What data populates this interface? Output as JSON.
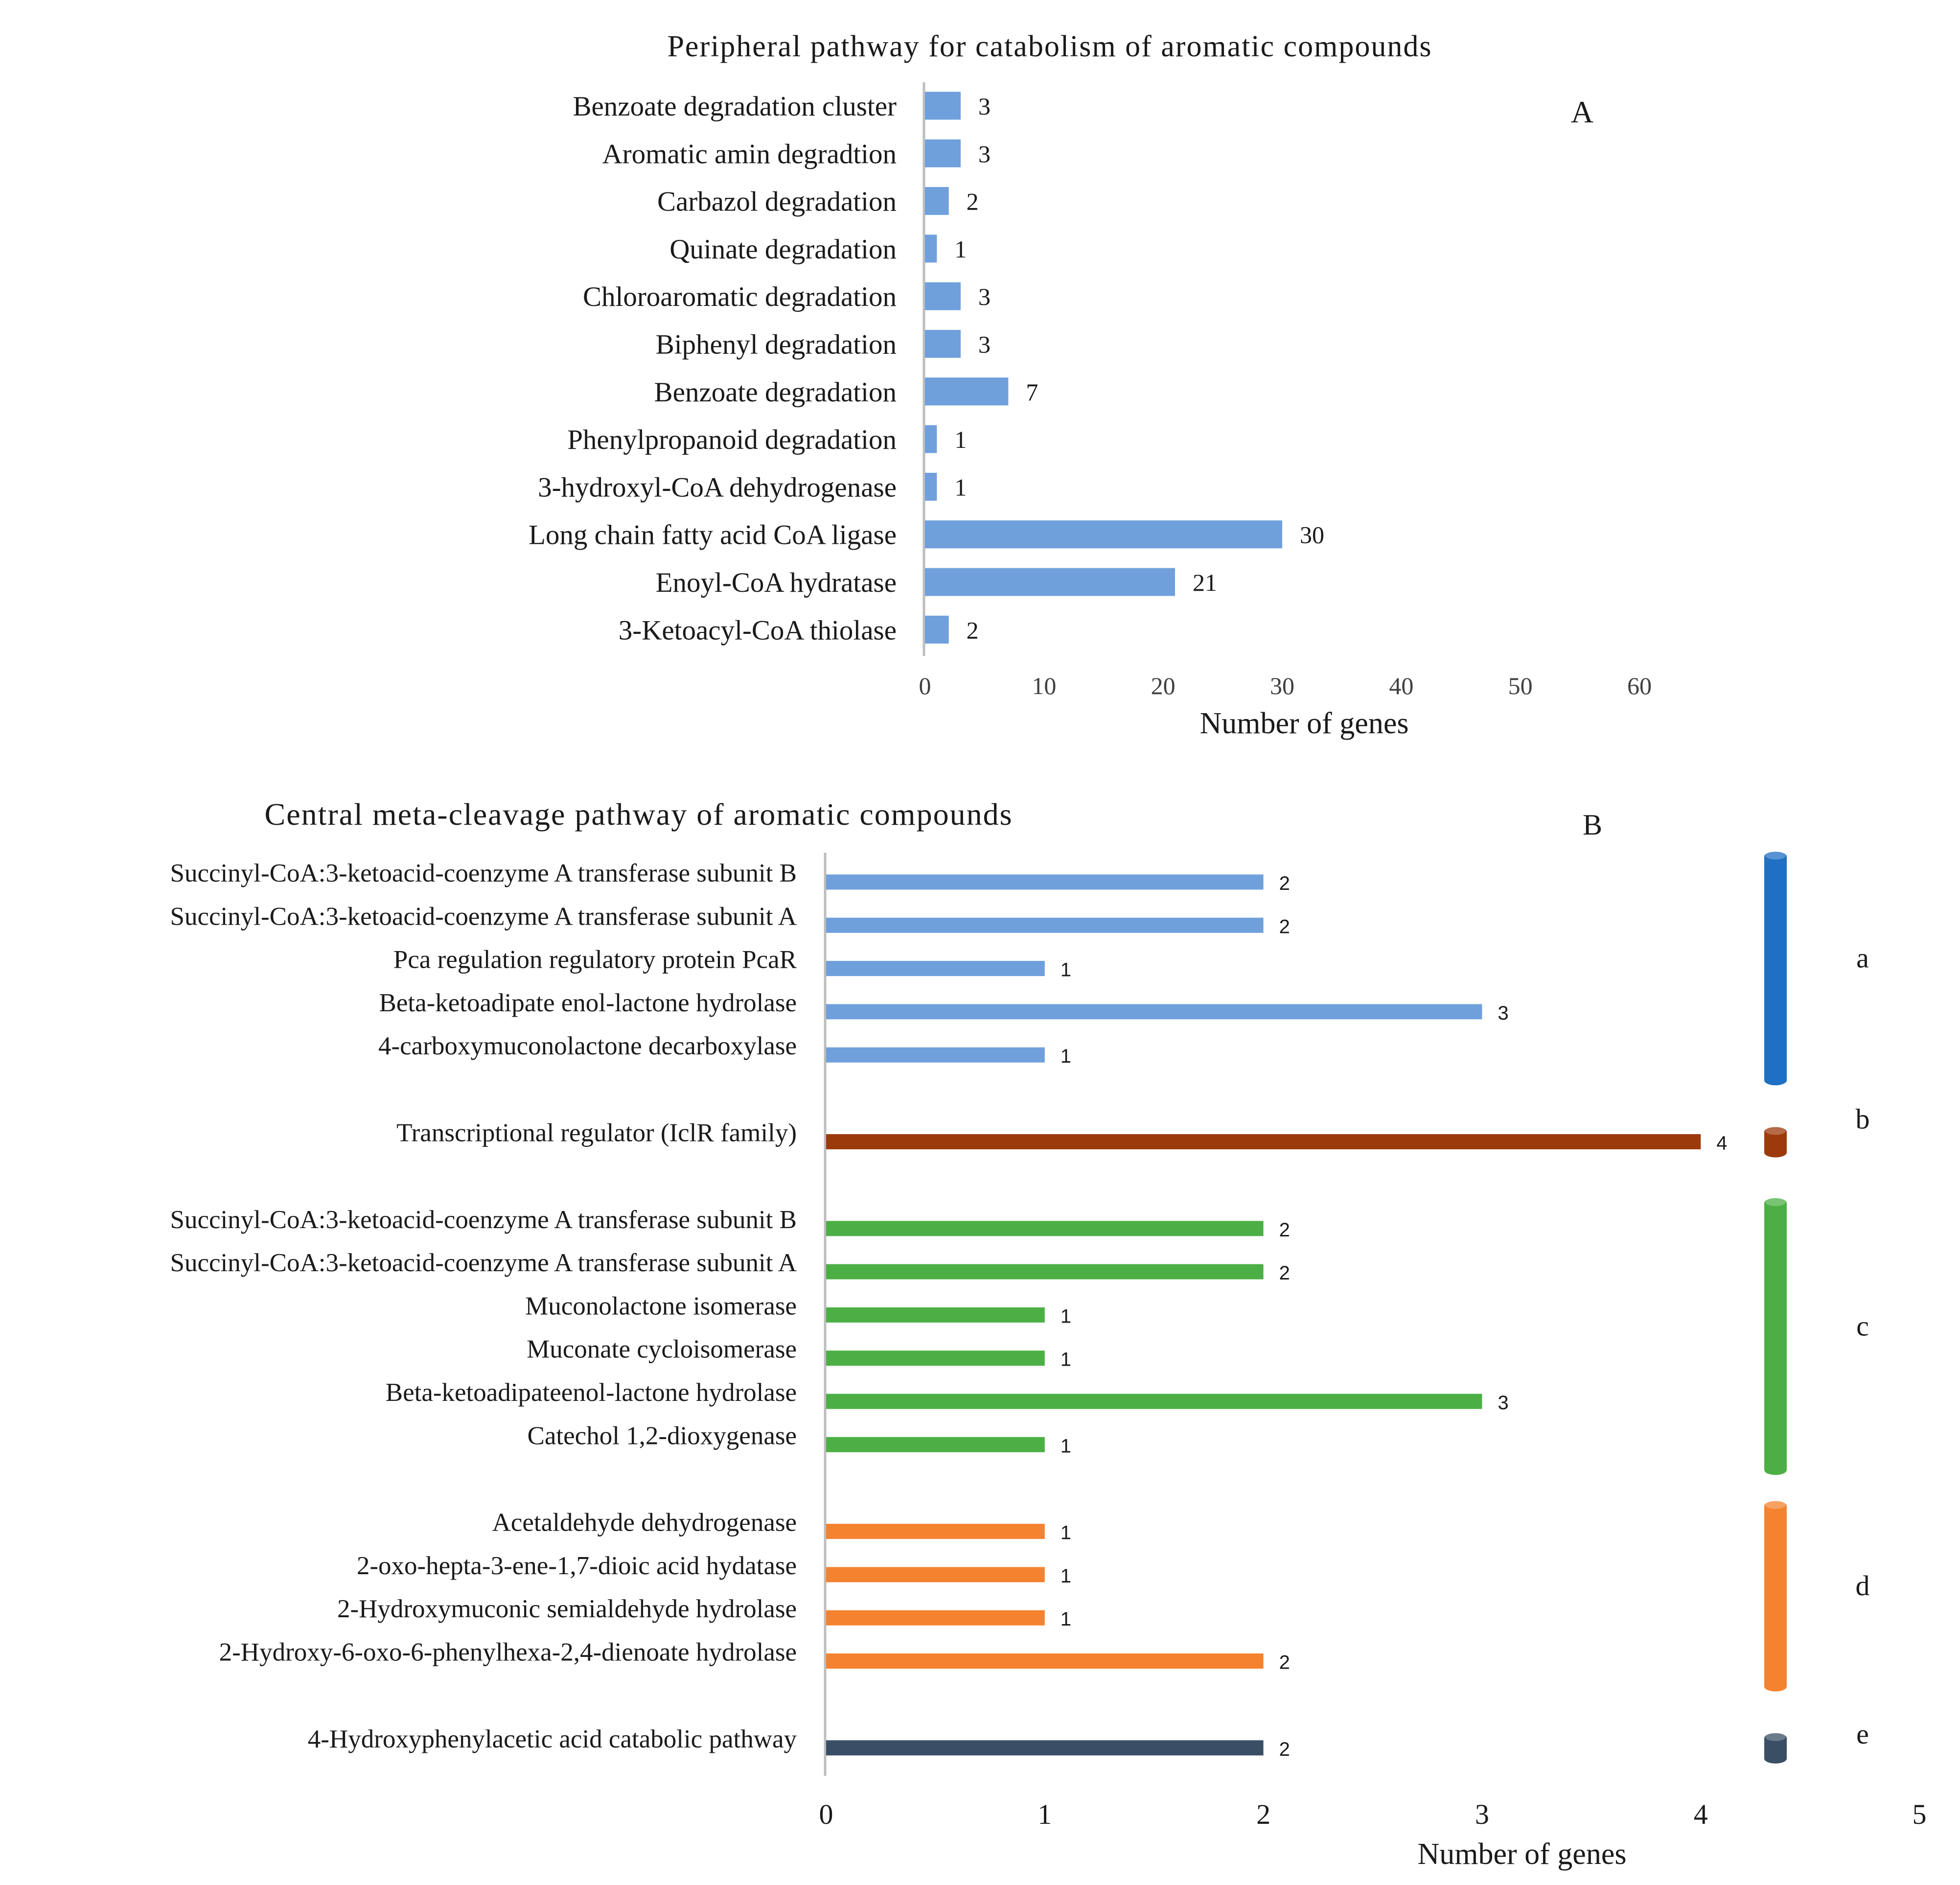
{
  "chart_data": [
    {
      "panel": "A",
      "type": "bar",
      "orientation": "horizontal",
      "title": "Peripheral pathway for catabolism of aromatic compounds",
      "panel_label": "A",
      "xlabel": "Number of genes",
      "ylabel": "",
      "xlim": [
        0,
        60
      ],
      "xticks": [
        "0",
        "10",
        "20",
        "30",
        "40",
        "50",
        "60"
      ],
      "grid": false,
      "legend": "none",
      "bar_color": "#6fa0dc",
      "categories": [
        "Benzoate degradation cluster",
        "Aromatic amin degradtion",
        "Carbazol degradation",
        "Quinate degradation",
        "Chloroaromatic degradation",
        "Biphenyl degradation",
        "Benzoate degradation",
        "Phenylpropanoid degradation",
        "3-hydroxyl-CoA dehydrogenase",
        "Long chain fatty acid CoA ligase",
        "Enoyl-CoA hydratase",
        "3-Ketoacyl-CoA thiolase"
      ],
      "values": [
        3,
        3,
        2,
        1,
        3,
        3,
        7,
        1,
        1,
        30,
        21,
        2
      ],
      "value_labels": [
        "3",
        "3",
        "2",
        "1",
        "3",
        "3",
        "7",
        "1",
        "1",
        "30",
        "21",
        "2"
      ]
    },
    {
      "panel": "B",
      "type": "bar",
      "orientation": "horizontal",
      "title": "Central meta-cleavage pathway of aromatic compounds",
      "panel_label": "B",
      "xlabel": "Number of genes",
      "ylabel": "",
      "xlim": [
        0,
        5
      ],
      "xticks": [
        "0",
        "1",
        "2",
        "3",
        "4",
        "5"
      ],
      "grid": false,
      "legend": "right",
      "groups": [
        {
          "label": "a",
          "color": "#6fa0dc",
          "legend_color": "#1f6fc4",
          "categories": [
            "Succinyl-CoA:3-ketoacid-coenzyme A transferase subunit B",
            "Succinyl-CoA:3-ketoacid-coenzyme A transferase subunit A",
            "Pca regulation regulatory protein PcaR",
            "Beta-ketoadipate enol-lactone hydrolase",
            "4-carboxymuconolactone decarboxylase"
          ],
          "values": [
            2,
            2,
            1,
            3,
            1
          ],
          "value_labels": [
            "2",
            "2",
            "1",
            "3",
            "1"
          ]
        },
        {
          "label": "b",
          "color": "#9c3a0c",
          "legend_color": "#9c3a0c",
          "categories": [
            "Transcriptional regulator (IclR family)"
          ],
          "values": [
            4
          ],
          "value_labels": [
            "4"
          ]
        },
        {
          "label": "c",
          "color": "#4caf45",
          "legend_color": "#4caf45",
          "categories": [
            "Succinyl-CoA:3-ketoacid-coenzyme A transferase subunit B",
            "Succinyl-CoA:3-ketoacid-coenzyme A transferase subunit A",
            "Muconolactone isomerase",
            "Muconate cycloisomerase",
            "Beta-ketoadipateenol-lactone hydrolase",
            "Catechol 1,2-dioxygenase"
          ],
          "values": [
            2,
            2,
            1,
            1,
            3,
            1
          ],
          "value_labels": [
            "2",
            "2",
            "1",
            "1",
            "3",
            "1"
          ]
        },
        {
          "label": "d",
          "color": "#f5822f",
          "legend_color": "#f5822f",
          "categories": [
            "Acetaldehyde dehydrogenase",
            "2-oxo-hepta-3-ene-1,7-dioic acid hydatase",
            "2-Hydroxymuconic semialdehyde hydrolase",
            "2-Hydroxy-6-oxo-6-phenylhexa-2,4-dienoate hydrolase"
          ],
          "values": [
            1,
            1,
            1,
            2
          ],
          "value_labels": [
            "1",
            "1",
            "1",
            "2"
          ]
        },
        {
          "label": "e",
          "color": "#3a4f66",
          "legend_color": "#3a4f66",
          "categories": [
            "4-Hydroxyphenylacetic acid catabolic pathway"
          ],
          "values": [
            2
          ],
          "value_labels": [
            "2"
          ]
        }
      ]
    }
  ]
}
